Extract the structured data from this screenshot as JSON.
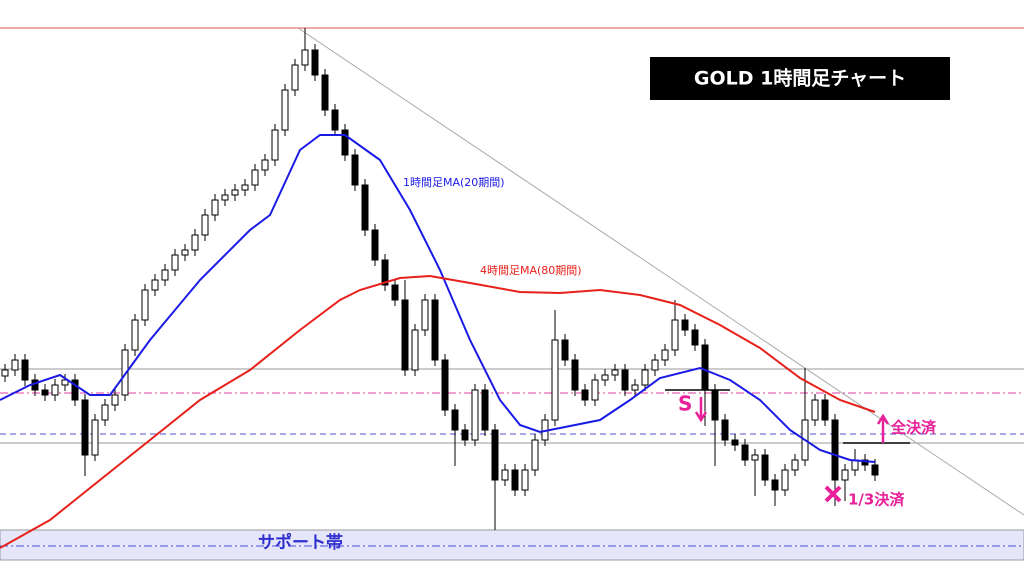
{
  "chart_data": {
    "type": "candlestick",
    "title": "GOLD  1時間足チャート",
    "xlim": [
      -0.5,
      101.9
    ],
    "ylim": [
      0,
      576
    ],
    "bull_color": "#ffffff",
    "bear_color": "#000000",
    "candles": [
      [
        200,
        212,
        194,
        206
      ],
      [
        206,
        222,
        200,
        216
      ],
      [
        216,
        222,
        190,
        196
      ],
      [
        196,
        202,
        180,
        186
      ],
      [
        186,
        192,
        175,
        181
      ],
      [
        181,
        197,
        175,
        191
      ],
      [
        191,
        202,
        185,
        196
      ],
      [
        196,
        202,
        170,
        176
      ],
      [
        176,
        182,
        100,
        121
      ],
      [
        121,
        162,
        115,
        156
      ],
      [
        156,
        177,
        150,
        171
      ],
      [
        171,
        187,
        165,
        181
      ],
      [
        181,
        232,
        175,
        226
      ],
      [
        226,
        262,
        220,
        256
      ],
      [
        256,
        292,
        250,
        286
      ],
      [
        286,
        302,
        280,
        296
      ],
      [
        296,
        312,
        290,
        306
      ],
      [
        306,
        327,
        300,
        321
      ],
      [
        321,
        332,
        315,
        326
      ],
      [
        326,
        347,
        320,
        341
      ],
      [
        341,
        367,
        335,
        361
      ],
      [
        361,
        382,
        355,
        376
      ],
      [
        376,
        387,
        370,
        381
      ],
      [
        381,
        392,
        375,
        386
      ],
      [
        386,
        397,
        380,
        391
      ],
      [
        391,
        412,
        385,
        406
      ],
      [
        406,
        422,
        400,
        416
      ],
      [
        416,
        452,
        410,
        446
      ],
      [
        446,
        492,
        440,
        486
      ],
      [
        486,
        517,
        480,
        511
      ],
      [
        511,
        548,
        505,
        526
      ],
      [
        526,
        532,
        495,
        501
      ],
      [
        501,
        507,
        460,
        466
      ],
      [
        466,
        472,
        440,
        446
      ],
      [
        446,
        452,
        415,
        421
      ],
      [
        421,
        427,
        385,
        391
      ],
      [
        391,
        397,
        340,
        346
      ],
      [
        346,
        352,
        310,
        316
      ],
      [
        316,
        322,
        285,
        291
      ],
      [
        291,
        297,
        270,
        276
      ],
      [
        276,
        296,
        200,
        206
      ],
      [
        206,
        252,
        200,
        246
      ],
      [
        246,
        282,
        240,
        276
      ],
      [
        276,
        282,
        210,
        216
      ],
      [
        216,
        222,
        160,
        166
      ],
      [
        166,
        172,
        110,
        146
      ],
      [
        146,
        152,
        130,
        136
      ],
      [
        136,
        192,
        130,
        186
      ],
      [
        186,
        192,
        140,
        146
      ],
      [
        146,
        152,
        46,
        96
      ],
      [
        96,
        112,
        90,
        106
      ],
      [
        106,
        112,
        80,
        86
      ],
      [
        86,
        112,
        80,
        106
      ],
      [
        106,
        142,
        100,
        136
      ],
      [
        136,
        162,
        130,
        156
      ],
      [
        156,
        266,
        150,
        236
      ],
      [
        236,
        242,
        210,
        216
      ],
      [
        216,
        222,
        180,
        186
      ],
      [
        186,
        192,
        170,
        176
      ],
      [
        176,
        202,
        170,
        196
      ],
      [
        196,
        207,
        190,
        201
      ],
      [
        201,
        212,
        195,
        206
      ],
      [
        206,
        212,
        180,
        186
      ],
      [
        186,
        197,
        180,
        191
      ],
      [
        191,
        212,
        185,
        206
      ],
      [
        206,
        222,
        200,
        216
      ],
      [
        216,
        232,
        210,
        226
      ],
      [
        226,
        276,
        220,
        256
      ],
      [
        256,
        262,
        240,
        246
      ],
      [
        246,
        252,
        225,
        231
      ],
      [
        231,
        237,
        150,
        186
      ],
      [
        186,
        192,
        110,
        156
      ],
      [
        156,
        162,
        130,
        136
      ],
      [
        136,
        142,
        125,
        131
      ],
      [
        131,
        137,
        110,
        116
      ],
      [
        116,
        127,
        80,
        121
      ],
      [
        121,
        127,
        90,
        96
      ],
      [
        96,
        102,
        70,
        86
      ],
      [
        86,
        112,
        80,
        106
      ],
      [
        106,
        122,
        100,
        116
      ],
      [
        116,
        208,
        110,
        156
      ],
      [
        156,
        182,
        150,
        176
      ],
      [
        176,
        182,
        150,
        156
      ],
      [
        156,
        162,
        70,
        96
      ],
      [
        96,
        112,
        75,
        106
      ],
      [
        106,
        127,
        100,
        116
      ],
      [
        116,
        122,
        105,
        111
      ],
      [
        111,
        117,
        95,
        101
      ]
    ],
    "series": [
      {
        "name": "1時間足MA(20期間)",
        "color": "#1a1ae6",
        "x": [
          -0.5,
          2.5,
          5.5,
          8.5,
          10.5,
          14.5,
          19.5,
          24.5,
          26.5,
          29.5,
          31.5,
          34,
          37.5,
          40.5,
          43.5,
          46.5,
          49.5,
          51.5,
          53.5,
          55.5,
          59.5,
          62.5,
          65.5,
          69.5,
          72.5,
          75.5,
          78.5,
          81.5,
          84.5,
          87
        ],
        "values": [
          176,
          191,
          201,
          181,
          181,
          236,
          296,
          346,
          361,
          426,
          441,
          441,
          416,
          366,
          306,
          236,
          176,
          151,
          144,
          148,
          156,
          176,
          198,
          208,
          196,
          176,
          146,
          126,
          116,
          114
        ]
      },
      {
        "name": "4時間足MA(80期間)",
        "color": "#e8201a",
        "x": [
          -0.5,
          4.5,
          9.5,
          14.5,
          19.5,
          24.5,
          29.5,
          33.5,
          35.5,
          39.5,
          42.5,
          46.5,
          51.5,
          55.5,
          59.5,
          63.5,
          67.5,
          71.5,
          75.5,
          79.5,
          83.5,
          87
        ],
        "values": [
          28,
          56,
          96,
          136,
          176,
          206,
          246,
          276,
          286,
          298,
          300,
          293,
          284,
          283,
          286,
          281,
          271,
          251,
          228,
          198,
          176,
          164
        ]
      }
    ],
    "levels": [
      {
        "value": 548,
        "color": "#e05050",
        "style": "solid"
      },
      {
        "value": 207,
        "color": "#999999",
        "style": "solid"
      },
      {
        "value": 183,
        "color": "#e040a0",
        "style": "dashdot"
      },
      {
        "value": 142,
        "color": "#5050d0",
        "style": "dashed"
      },
      {
        "value": 133,
        "color": "#999999",
        "style": "solid"
      },
      {
        "value": 30,
        "color": "#5050d0",
        "style": "dashdot"
      }
    ],
    "band": {
      "range": [
        16,
        46
      ],
      "color": "#e6e6fa",
      "label": "サポート帯"
    },
    "trendline": {
      "x": [
        29.3,
        101.9
      ],
      "values": [
        548,
        61
      ],
      "color": "#aaaaaa"
    },
    "entries": [
      {
        "x": [
          66,
          72.5
        ],
        "value": 186
      },
      {
        "x": [
          83.8,
          90.5
        ],
        "value": 133
      }
    ],
    "annotations": [
      "S",
      "全決済",
      "1/3決済"
    ]
  }
}
